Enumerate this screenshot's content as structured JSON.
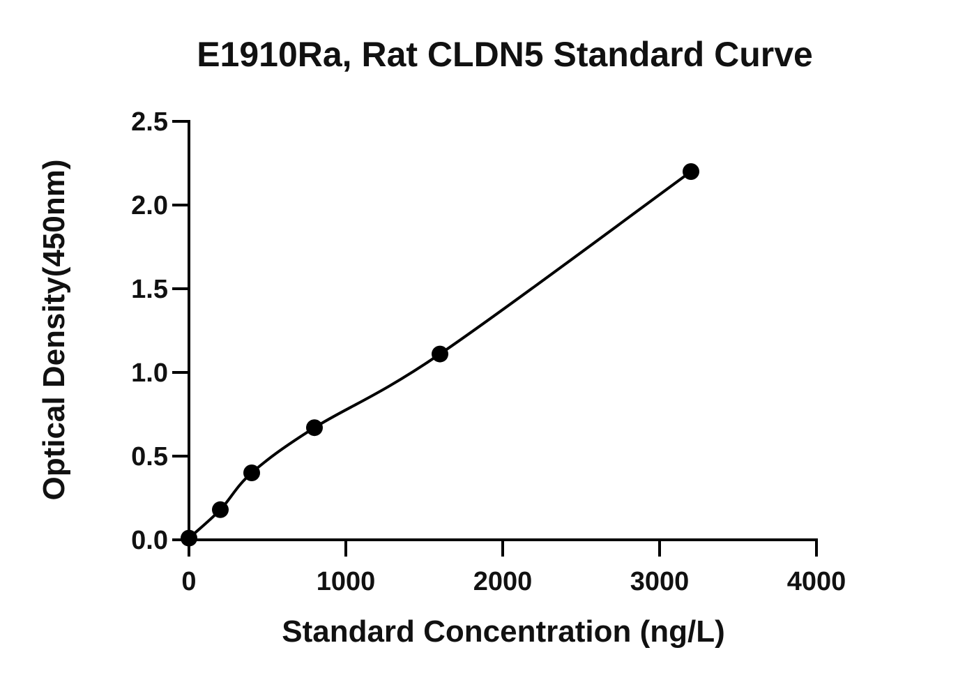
{
  "chart_data": {
    "type": "scatter",
    "title": "E1910Ra, Rat CLDN5 Standard Curve",
    "xlabel": "Standard Concentration (ng/L)",
    "ylabel": "Optical Density(450nm)",
    "xlim": [
      0,
      4000
    ],
    "ylim": [
      0,
      2.5
    ],
    "x_ticks": [
      "0",
      "1000",
      "2000",
      "3000",
      "4000"
    ],
    "y_ticks": [
      "0.0",
      "0.5",
      "1.0",
      "1.5",
      "2.0",
      "2.5"
    ],
    "grid": false,
    "series": [
      {
        "x": [
          0,
          200,
          400,
          800,
          1600,
          3200
        ],
        "y": [
          0.01,
          0.18,
          0.4,
          0.67,
          1.11,
          2.2
        ],
        "color": "#000000",
        "fit_curve": true
      }
    ]
  }
}
